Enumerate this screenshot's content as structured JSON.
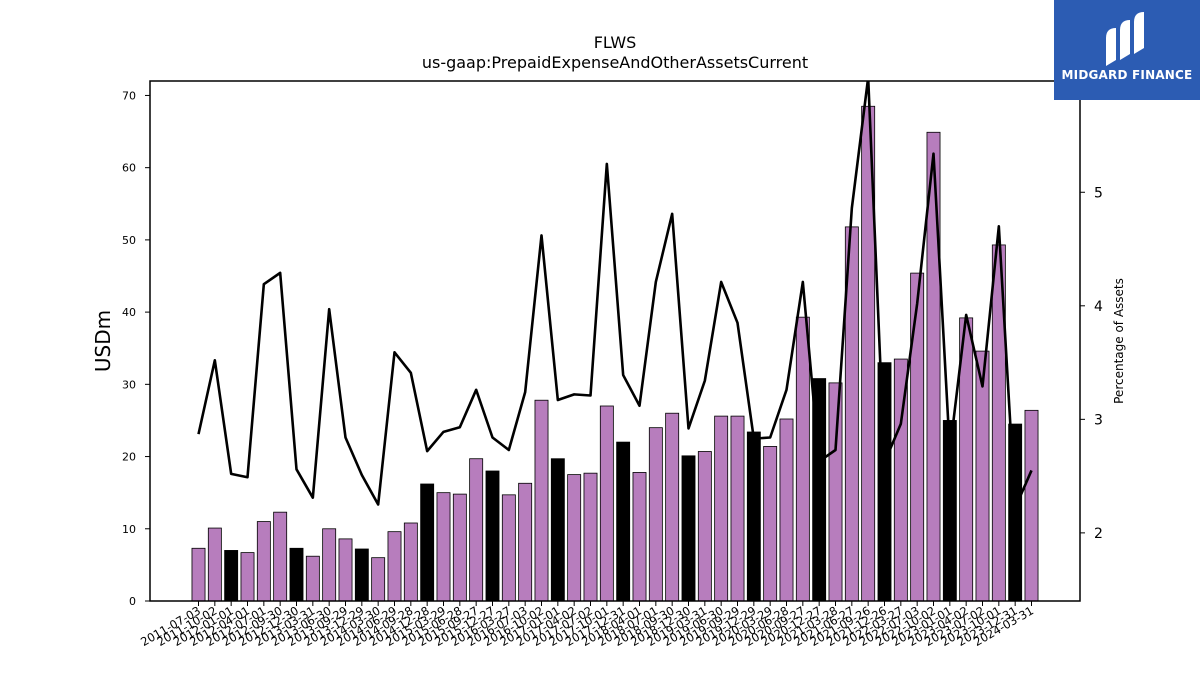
{
  "chart_data": {
    "type": "bar+line",
    "title": "FLWS",
    "subtitle": "us-gaap:PrepaidExpenseAndOtherAssetsCurrent",
    "ylabel": "USDm",
    "y2label": "Percentage of Assets",
    "ylim": [
      0,
      72
    ],
    "y2lim": [
      1.4,
      5.98
    ],
    "yticks": [
      0,
      10,
      20,
      30,
      40,
      50,
      60,
      70
    ],
    "y2ticks": [
      2,
      3,
      4,
      5
    ],
    "grid": false,
    "legend": "none",
    "colors": {
      "bar_default": "#b77dbd",
      "bar_highlight": "#000000",
      "line": "#000000"
    },
    "categories": [
      "2011-07-03",
      "2011-10-02",
      "2012-01-01",
      "2012-04-01",
      "2012-07-01",
      "2012-09-30",
      "2012-12-30",
      "2013-03-31",
      "2013-06-30",
      "2013-09-29",
      "2013-12-29",
      "2014-03-30",
      "2014-06-29",
      "2014-09-28",
      "2014-12-28",
      "2015-03-29",
      "2015-06-28",
      "2015-09-27",
      "2015-12-27",
      "2016-03-27",
      "2016-07-03",
      "2016-10-02",
      "2017-01-01",
      "2017-04-02",
      "2017-07-02",
      "2017-10-01",
      "2017-12-31",
      "2018-04-01",
      "2018-07-01",
      "2018-09-30",
      "2018-12-30",
      "2019-03-31",
      "2019-06-30",
      "2019-09-29",
      "2019-12-29",
      "2020-03-29",
      "2020-06-28",
      "2020-09-27",
      "2020-12-27",
      "2021-03-28",
      "2021-06-27",
      "2021-09-26",
      "2021-12-26",
      "2022-03-27",
      "2022-07-03",
      "2022-10-02",
      "2023-01-01",
      "2023-04-02",
      "2023-07-02",
      "2023-10-01",
      "2023-12-31",
      "2024-03-31"
    ],
    "series": [
      {
        "values": [
          7.3,
          10.1,
          7.0,
          6.7,
          11.0,
          12.3,
          7.3,
          6.2,
          10.0,
          8.6,
          7.2,
          6.0,
          9.6,
          10.8,
          16.2,
          15.0,
          14.8,
          19.7,
          18.0,
          14.7,
          16.3,
          27.8,
          19.7,
          17.5,
          17.7,
          27.0,
          22.0,
          17.8,
          24.0,
          26.0,
          20.1,
          20.7,
          25.6,
          25.6,
          23.4,
          21.4,
          25.2,
          39.3,
          30.8,
          30.2,
          51.8,
          68.5,
          33.0,
          33.5,
          45.4,
          64.9,
          25.0,
          39.2,
          34.6,
          49.3,
          24.5,
          26.4
        ],
        "highlight": [
          false,
          false,
          true,
          false,
          false,
          false,
          true,
          false,
          false,
          false,
          true,
          false,
          false,
          false,
          true,
          false,
          false,
          false,
          true,
          false,
          false,
          false,
          true,
          false,
          false,
          false,
          true,
          false,
          false,
          false,
          true,
          false,
          false,
          false,
          true,
          false,
          false,
          false,
          true,
          false,
          false,
          false,
          true,
          false,
          false,
          false,
          true,
          false,
          false,
          false,
          true,
          false
        ]
      },
      {
        "axis": "right",
        "values": [
          2.87,
          3.52,
          2.52,
          2.49,
          4.19,
          4.29,
          2.56,
          2.31,
          3.97,
          2.84,
          2.51,
          2.25,
          3.59,
          3.41,
          2.72,
          2.89,
          2.93,
          3.26,
          2.84,
          2.73,
          3.24,
          4.62,
          3.17,
          3.22,
          3.21,
          5.25,
          3.39,
          3.12,
          4.21,
          4.81,
          2.92,
          3.34,
          4.21,
          3.85,
          2.83,
          2.84,
          3.26,
          4.21,
          2.63,
          2.73,
          4.86,
          6.01,
          2.62,
          2.96,
          4.02,
          5.34,
          2.72,
          3.92,
          3.29,
          4.7,
          2.22,
          2.55
        ]
      }
    ]
  },
  "logo": {
    "text": "MIDGARD FINANCE",
    "icon": "midgard-logo-icon"
  }
}
